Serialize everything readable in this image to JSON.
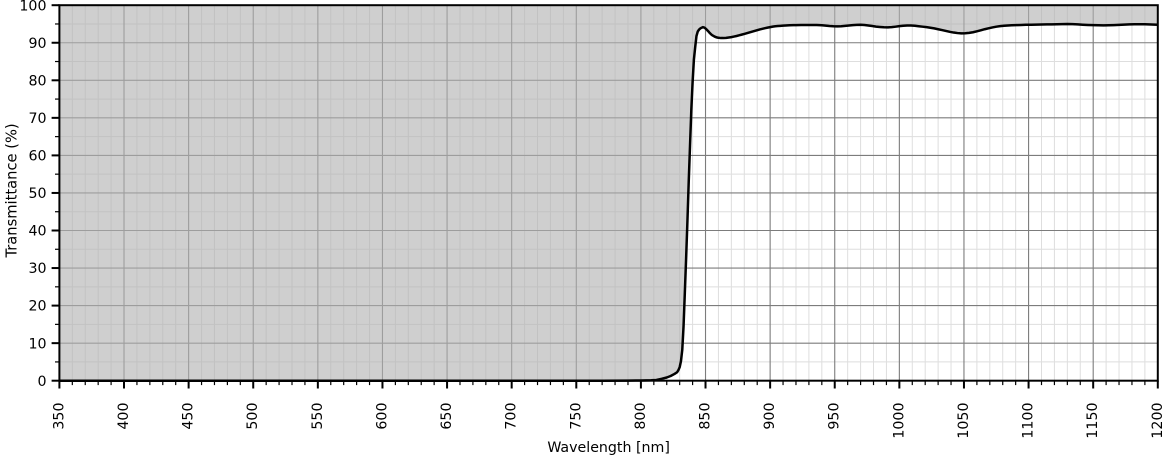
{
  "figure": {
    "kind": "spectral transmittance plot of a long-pass optical filter",
    "background_color": "#ffffff"
  },
  "chart_data": {
    "type": "line",
    "title": "",
    "xlabel": "Wavelength [nm]",
    "ylabel": "Transmittance (%)",
    "xlim": [
      350,
      1200
    ],
    "ylim": [
      0,
      100
    ],
    "x_major_ticks": [
      350,
      400,
      450,
      500,
      550,
      600,
      650,
      700,
      750,
      800,
      850,
      900,
      950,
      1000,
      1050,
      1100,
      1150,
      1200
    ],
    "x_minor_step": 10,
    "y_major_ticks": [
      0,
      10,
      20,
      30,
      40,
      50,
      60,
      70,
      80,
      90,
      100
    ],
    "y_minor_step": 5,
    "x_tick_label_rotation_deg": 90,
    "grid": "both",
    "legend": "none",
    "series": [
      {
        "name": "transmittance-curve",
        "line_color": "#000000",
        "fill_above_color": "rgba(178,178,178,0.62)",
        "fill_between": "curve and y=100",
        "points": [
          [
            350,
            0
          ],
          [
            400,
            0
          ],
          [
            450,
            0
          ],
          [
            500,
            0
          ],
          [
            550,
            0
          ],
          [
            600,
            0
          ],
          [
            650,
            0
          ],
          [
            700,
            0
          ],
          [
            740,
            0
          ],
          [
            770,
            0
          ],
          [
            790,
            0.02
          ],
          [
            800,
            0.05
          ],
          [
            808,
            0.12
          ],
          [
            812,
            0.2
          ],
          [
            816,
            0.5
          ],
          [
            820,
            0.85
          ],
          [
            823,
            1.25
          ],
          [
            826,
            1.8
          ],
          [
            828,
            2.25
          ],
          [
            829,
            2.8
          ],
          [
            830,
            3.6
          ],
          [
            831,
            5.2
          ],
          [
            832,
            8.2
          ],
          [
            833,
            14.5
          ],
          [
            834,
            23.5
          ],
          [
            835,
            32.7
          ],
          [
            836,
            42.5
          ],
          [
            837,
            53
          ],
          [
            838,
            62.5
          ],
          [
            839,
            72
          ],
          [
            840,
            79.5
          ],
          [
            841,
            85.5
          ],
          [
            842,
            88.8
          ],
          [
            843,
            91.8
          ],
          [
            844,
            93.0
          ],
          [
            845,
            93.5
          ],
          [
            846,
            93.8
          ],
          [
            847,
            94.0
          ],
          [
            848,
            94.15
          ],
          [
            849,
            94.05
          ],
          [
            850,
            93.8
          ],
          [
            851,
            93.45
          ],
          [
            852,
            93.1
          ],
          [
            853,
            92.7
          ],
          [
            854,
            92.35
          ],
          [
            855,
            92.05
          ],
          [
            856,
            91.85
          ],
          [
            857,
            91.65
          ],
          [
            858,
            91.5
          ],
          [
            859,
            91.4
          ],
          [
            860,
            91.32
          ],
          [
            862,
            91.25
          ],
          [
            864,
            91.25
          ],
          [
            866,
            91.3
          ],
          [
            868,
            91.4
          ],
          [
            870,
            91.5
          ],
          [
            872,
            91.65
          ],
          [
            874,
            91.8
          ],
          [
            876,
            91.98
          ],
          [
            878,
            92.16
          ],
          [
            880,
            92.35
          ],
          [
            882,
            92.55
          ],
          [
            884,
            92.75
          ],
          [
            886,
            92.95
          ],
          [
            888,
            93.15
          ],
          [
            890,
            93.35
          ],
          [
            892,
            93.55
          ],
          [
            894,
            93.72
          ],
          [
            896,
            93.88
          ],
          [
            898,
            94.03
          ],
          [
            900,
            94.16
          ],
          [
            902,
            94.3
          ],
          [
            904,
            94.4
          ],
          [
            906,
            94.45
          ],
          [
            908,
            94.5
          ],
          [
            910,
            94.55
          ],
          [
            912,
            94.6
          ],
          [
            915,
            94.65
          ],
          [
            918,
            94.68
          ],
          [
            920,
            94.7
          ],
          [
            924,
            94.72
          ],
          [
            928,
            94.73
          ],
          [
            932,
            94.74
          ],
          [
            936,
            94.72
          ],
          [
            940,
            94.65
          ],
          [
            943,
            94.55
          ],
          [
            946,
            94.45
          ],
          [
            949,
            94.38
          ],
          [
            952,
            94.36
          ],
          [
            955,
            94.4
          ],
          [
            958,
            94.5
          ],
          [
            961,
            94.6
          ],
          [
            964,
            94.7
          ],
          [
            967,
            94.76
          ],
          [
            970,
            94.78
          ],
          [
            973,
            94.72
          ],
          [
            976,
            94.6
          ],
          [
            979,
            94.45
          ],
          [
            982,
            94.3
          ],
          [
            985,
            94.2
          ],
          [
            988,
            94.12
          ],
          [
            991,
            94.1
          ],
          [
            994,
            94.15
          ],
          [
            997,
            94.28
          ],
          [
            1000,
            94.42
          ],
          [
            1003,
            94.52
          ],
          [
            1006,
            94.58
          ],
          [
            1009,
            94.58
          ],
          [
            1012,
            94.52
          ],
          [
            1015,
            94.4
          ],
          [
            1018,
            94.28
          ],
          [
            1021,
            94.15
          ],
          [
            1024,
            94.0
          ],
          [
            1027,
            93.82
          ],
          [
            1030,
            93.6
          ],
          [
            1033,
            93.38
          ],
          [
            1036,
            93.15
          ],
          [
            1039,
            92.92
          ],
          [
            1042,
            92.72
          ],
          [
            1045,
            92.58
          ],
          [
            1048,
            92.5
          ],
          [
            1051,
            92.52
          ],
          [
            1054,
            92.62
          ],
          [
            1057,
            92.8
          ],
          [
            1060,
            93.05
          ],
          [
            1063,
            93.32
          ],
          [
            1066,
            93.6
          ],
          [
            1069,
            93.85
          ],
          [
            1072,
            94.08
          ],
          [
            1075,
            94.28
          ],
          [
            1078,
            94.42
          ],
          [
            1081,
            94.52
          ],
          [
            1084,
            94.6
          ],
          [
            1087,
            94.66
          ],
          [
            1090,
            94.7
          ],
          [
            1094,
            94.74
          ],
          [
            1098,
            94.78
          ],
          [
            1102,
            94.8
          ],
          [
            1106,
            94.82
          ],
          [
            1110,
            94.85
          ],
          [
            1114,
            94.88
          ],
          [
            1118,
            94.9
          ],
          [
            1122,
            94.93
          ],
          [
            1126,
            94.96
          ],
          [
            1130,
            94.98
          ],
          [
            1134,
            94.95
          ],
          [
            1138,
            94.88
          ],
          [
            1142,
            94.8
          ],
          [
            1146,
            94.73
          ],
          [
            1150,
            94.68
          ],
          [
            1154,
            94.65
          ],
          [
            1158,
            94.64
          ],
          [
            1162,
            94.66
          ],
          [
            1166,
            94.7
          ],
          [
            1170,
            94.75
          ],
          [
            1174,
            94.82
          ],
          [
            1178,
            94.88
          ],
          [
            1182,
            94.92
          ],
          [
            1186,
            94.94
          ],
          [
            1190,
            94.92
          ],
          [
            1195,
            94.87
          ],
          [
            1200,
            94.8
          ]
        ]
      }
    ],
    "style": {
      "spine_color": "#000000",
      "major_grid_color": "#7c7c7c",
      "minor_grid_color": "#dedede",
      "tick_color": "#000000",
      "curve_width": 2.5
    }
  }
}
